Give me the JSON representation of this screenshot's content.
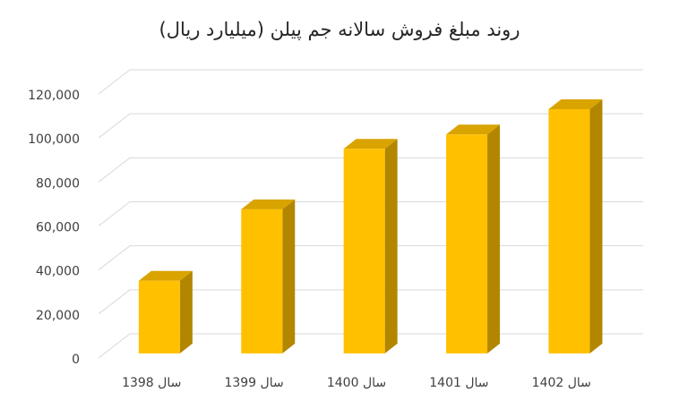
{
  "chart_data": {
    "type": "bar3d",
    "title": "روند مبلغ فروش سالانه جم پیلن (میلیارد ریال)",
    "categories": [
      "سال 1398",
      "سال 1399",
      "سال 1400",
      "سال 1401",
      "سال 1402"
    ],
    "values": [
      33000,
      65500,
      93000,
      99500,
      111000
    ],
    "color": "#ffc000",
    "ylim": [
      0,
      120000
    ],
    "yticks": [
      0,
      {
        "value": 20000,
        "label": "20,000"
      },
      {
        "value": 40000,
        "label": "40,000"
      },
      {
        "value": 60000,
        "label": "60,000"
      },
      {
        "value": 80000,
        "label": "80,000"
      },
      {
        "value": 100000,
        "label": "100,000"
      },
      {
        "value": 120000,
        "label": "120,000"
      }
    ],
    "grid": true
  }
}
